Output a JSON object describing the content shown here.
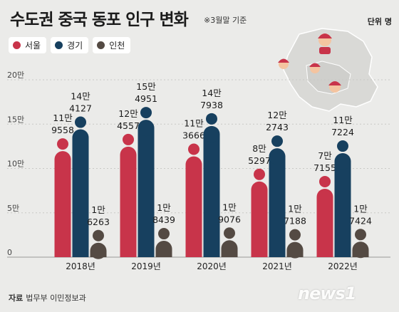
{
  "header": {
    "title": "수도권 중국 동포 인구 변화",
    "note": "※3월말 기준",
    "unit": "단위 명"
  },
  "footer": {
    "source_label": "자료",
    "source_text": "법무부 이민정보과",
    "logo": "news1"
  },
  "chart_data": {
    "type": "bar",
    "title": "수도권 중국 동포 인구 변화",
    "categories": [
      "2018년",
      "2019년",
      "2020년",
      "2021년",
      "2022년"
    ],
    "series": [
      {
        "name": "서울",
        "color": "#c8344a",
        "values": [
          119558,
          124557,
          113666,
          85297,
          77155
        ],
        "labels_top": [
          "11만",
          "12만",
          "11만",
          "8만",
          "7만"
        ],
        "labels_bottom": [
          "9558",
          "4557",
          "3666",
          "5297",
          "7155"
        ]
      },
      {
        "name": "경기",
        "color": "#17405f",
        "values": [
          144127,
          154951,
          147938,
          122743,
          117224
        ],
        "labels_top": [
          "14만",
          "15만",
          "14만",
          "12만",
          "11만"
        ],
        "labels_bottom": [
          "4127",
          "4951",
          "7938",
          "2743",
          "7224"
        ]
      },
      {
        "name": "인천",
        "color": "#544a43",
        "values": [
          16263,
          18439,
          19076,
          17188,
          17424
        ],
        "labels_top": [
          "1만",
          "1만",
          "1만",
          "1만",
          "1만"
        ],
        "labels_bottom": [
          "6263",
          "8439",
          "9076",
          "7188",
          "7424"
        ]
      }
    ],
    "y_ticks": [
      "20만",
      "15만",
      "10만",
      "5만",
      "0"
    ],
    "y_tick_values": [
      200000,
      150000,
      100000,
      50000,
      0
    ],
    "ylim": [
      0,
      200000
    ]
  }
}
